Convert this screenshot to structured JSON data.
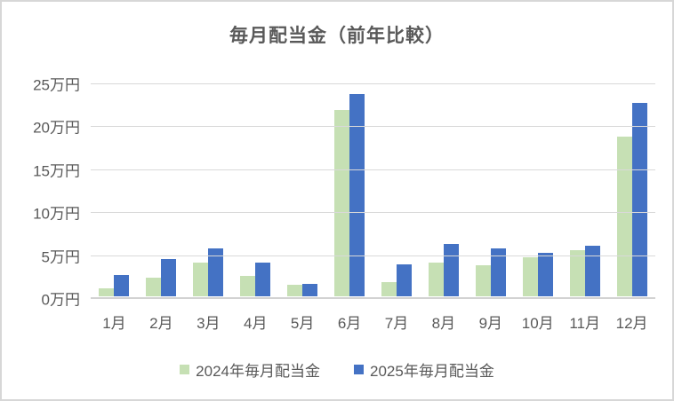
{
  "chart_data": {
    "type": "bar",
    "title": "毎月配当金（前年比較）",
    "categories": [
      "1月",
      "2月",
      "3月",
      "4月",
      "5月",
      "6月",
      "7月",
      "8月",
      "9月",
      "10月",
      "11月",
      "12月"
    ],
    "series": [
      {
        "name": "2024年毎月配当金",
        "color": "#C6E0B4",
        "values": [
          0.9,
          2.2,
          4.0,
          2.4,
          1.4,
          21.9,
          1.7,
          4.0,
          3.6,
          4.6,
          5.4,
          18.8
        ]
      },
      {
        "name": "2025年毎月配当金",
        "color": "#4472C4",
        "values": [
          2.5,
          4.4,
          5.6,
          4.0,
          1.5,
          23.8,
          3.8,
          6.1,
          5.6,
          5.1,
          5.9,
          22.7
        ]
      }
    ],
    "unit": "万円",
    "ylim": [
      0,
      25
    ],
    "yticks": [
      {
        "value": 0,
        "label": "0万円"
      },
      {
        "value": 5,
        "label": "5万円"
      },
      {
        "value": 10,
        "label": "10万円"
      },
      {
        "value": 15,
        "label": "15万円"
      },
      {
        "value": 20,
        "label": "20万円"
      },
      {
        "value": 25,
        "label": "25万円"
      }
    ],
    "grid": "horizontal",
    "legend_position": "bottom"
  },
  "colors": {
    "axis_text": "#595959",
    "title_text": "#595959",
    "gridline": "#d9d9d9",
    "frame_border": "#d7d7d7",
    "background": "#ffffff"
  }
}
